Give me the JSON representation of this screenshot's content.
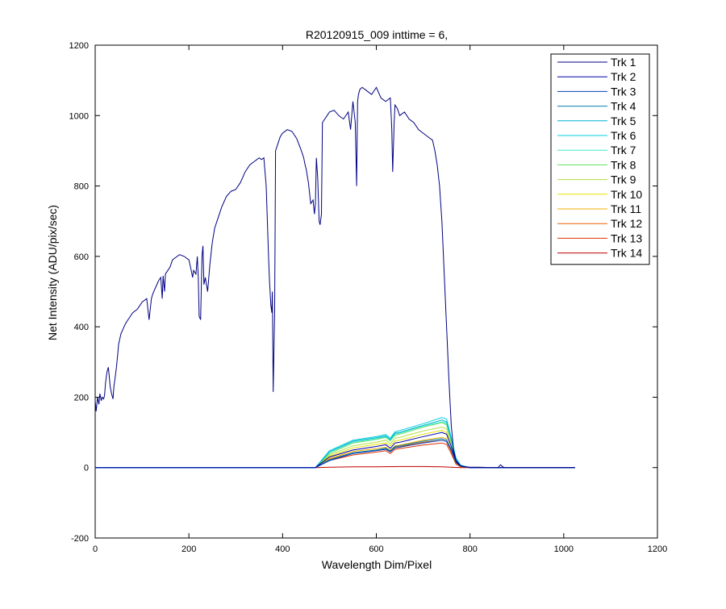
{
  "chart_data": {
    "type": "line",
    "title": "R20120915_009 inttime = 6,",
    "xlabel": "Wavelength Dim/Pixel",
    "ylabel": "Net Intensity (ADU/pix/sec)",
    "xlim": [
      0,
      1200
    ],
    "ylim": [
      -200,
      1200
    ],
    "xticks": [
      0,
      200,
      400,
      600,
      800,
      1000,
      1200
    ],
    "yticks": [
      -200,
      0,
      200,
      400,
      600,
      800,
      1000,
      1200
    ],
    "grid": false,
    "legend_position": "top-right",
    "series": [
      {
        "name": "Trk 1",
        "color": "#000080",
        "x": [
          0,
          2,
          5,
          8,
          10,
          13,
          15,
          18,
          20,
          22,
          25,
          28,
          30,
          32,
          35,
          38,
          40,
          43,
          45,
          48,
          50,
          55,
          60,
          65,
          70,
          75,
          80,
          90,
          100,
          110,
          115,
          120,
          122,
          125,
          130,
          135,
          140,
          143,
          145,
          148,
          150,
          155,
          160,
          165,
          170,
          175,
          180,
          190,
          200,
          205,
          208,
          210,
          215,
          218,
          220,
          222,
          225,
          228,
          230,
          232,
          235,
          240,
          245,
          250,
          255,
          260,
          270,
          280,
          290,
          300,
          310,
          320,
          330,
          340,
          350,
          355,
          360,
          365,
          370,
          372,
          375,
          377,
          378,
          380,
          383,
          385,
          390,
          395,
          400,
          410,
          420,
          430,
          440,
          445,
          448,
          450,
          455,
          460,
          465,
          468,
          470,
          472,
          475,
          478,
          480,
          483,
          485,
          490,
          495,
          500,
          510,
          520,
          530,
          540,
          545,
          550,
          555,
          558,
          560,
          562,
          565,
          570,
          580,
          590,
          600,
          610,
          620,
          630,
          633,
          635,
          638,
          640,
          645,
          650,
          660,
          670,
          680,
          690,
          700,
          710,
          720,
          725,
          730,
          735,
          740,
          745,
          750,
          755,
          760,
          765,
          770,
          775,
          780,
          785,
          790,
          800,
          820,
          850,
          860,
          865,
          870,
          875,
          880,
          900,
          950,
          1000,
          1024
        ],
        "values": [
          190,
          160,
          200,
          180,
          210,
          190,
          200,
          195,
          205,
          240,
          270,
          285,
          260,
          230,
          210,
          195,
          230,
          260,
          280,
          320,
          350,
          380,
          395,
          410,
          420,
          430,
          440,
          450,
          470,
          480,
          420,
          480,
          490,
          500,
          515,
          530,
          540,
          480,
          545,
          500,
          550,
          560,
          570,
          590,
          595,
          600,
          605,
          600,
          590,
          560,
          540,
          560,
          550,
          600,
          540,
          430,
          420,
          600,
          630,
          520,
          540,
          500,
          580,
          640,
          680,
          700,
          740,
          770,
          785,
          790,
          810,
          840,
          860,
          870,
          880,
          875,
          880,
          800,
          600,
          530,
          460,
          440,
          500,
          215,
          450,
          900,
          920,
          940,
          950,
          960,
          955,
          935,
          900,
          880,
          860,
          850,
          810,
          750,
          760,
          720,
          750,
          880,
          820,
          700,
          690,
          720,
          980,
          990,
          1000,
          1010,
          1015,
          1000,
          990,
          1010,
          960,
          1040,
          980,
          800,
          1040,
          1060,
          1075,
          1080,
          1070,
          1060,
          1080,
          1050,
          1040,
          1050,
          960,
          840,
          980,
          1030,
          1020,
          1000,
          1010,
          990,
          980,
          960,
          950,
          940,
          930,
          900,
          860,
          800,
          700,
          550,
          400,
          250,
          120,
          50,
          20,
          10,
          5,
          3,
          2,
          1,
          1,
          0,
          0,
          8,
          2,
          0,
          0,
          0,
          0,
          0,
          0
        ]
      },
      {
        "name": "Trk 2",
        "color": "#0000AA",
        "x": [
          0,
          470,
          500,
          550,
          600,
          620,
          630,
          640,
          650,
          700,
          740,
          750,
          760,
          770,
          780,
          800,
          1024
        ],
        "values": [
          0,
          0,
          30,
          50,
          60,
          65,
          55,
          70,
          72,
          88,
          100,
          95,
          60,
          20,
          5,
          0,
          0
        ]
      },
      {
        "name": "Trk 3",
        "color": "#0040C0",
        "x": [
          0,
          470,
          500,
          550,
          600,
          620,
          630,
          640,
          650,
          700,
          740,
          750,
          760,
          770,
          780,
          800,
          1024
        ],
        "values": [
          0,
          0,
          20,
          40,
          48,
          52,
          45,
          56,
          58,
          70,
          78,
          74,
          50,
          15,
          4,
          0,
          0
        ]
      },
      {
        "name": "Trk 4",
        "color": "#0080B0",
        "x": [
          0,
          470,
          500,
          550,
          600,
          620,
          630,
          640,
          650,
          700,
          740,
          750,
          760,
          770,
          780,
          800,
          1024
        ],
        "values": [
          0,
          0,
          22,
          42,
          50,
          55,
          48,
          60,
          62,
          75,
          82,
          78,
          52,
          15,
          4,
          0,
          0
        ]
      },
      {
        "name": "Trk 5",
        "color": "#00B0D0",
        "x": [
          0,
          470,
          500,
          550,
          600,
          620,
          630,
          640,
          650,
          700,
          740,
          750,
          760,
          770,
          780,
          800,
          1024
        ],
        "values": [
          0,
          0,
          45,
          75,
          85,
          90,
          80,
          98,
          100,
          120,
          135,
          130,
          80,
          25,
          6,
          0,
          0
        ]
      },
      {
        "name": "Trk 6",
        "color": "#00D0E0",
        "x": [
          0,
          470,
          500,
          550,
          600,
          620,
          630,
          640,
          650,
          700,
          740,
          750,
          760,
          770,
          780,
          800,
          1024
        ],
        "values": [
          0,
          0,
          48,
          78,
          88,
          94,
          84,
          102,
          105,
          125,
          142,
          138,
          85,
          28,
          7,
          0,
          0
        ]
      },
      {
        "name": "Trk 7",
        "color": "#40E8D0",
        "x": [
          0,
          470,
          500,
          550,
          600,
          620,
          630,
          640,
          650,
          700,
          740,
          750,
          760,
          770,
          780,
          800,
          1024
        ],
        "values": [
          0,
          0,
          44,
          72,
          82,
          88,
          78,
          95,
          98,
          118,
          130,
          126,
          78,
          24,
          6,
          0,
          0
        ]
      },
      {
        "name": "Trk 8",
        "color": "#60E060",
        "x": [
          0,
          470,
          500,
          550,
          600,
          620,
          630,
          640,
          650,
          700,
          740,
          750,
          760,
          770,
          780,
          800,
          1024
        ],
        "values": [
          0,
          0,
          40,
          70,
          80,
          86,
          76,
          92,
          95,
          115,
          128,
          122,
          75,
          22,
          5,
          0,
          0
        ]
      },
      {
        "name": "Trk 9",
        "color": "#B0E040",
        "x": [
          0,
          470,
          500,
          550,
          600,
          620,
          630,
          640,
          650,
          700,
          740,
          750,
          760,
          770,
          780,
          800,
          1024
        ],
        "values": [
          0,
          0,
          36,
          62,
          72,
          78,
          68,
          84,
          86,
          104,
          115,
          110,
          68,
          20,
          5,
          0,
          0
        ]
      },
      {
        "name": "Trk 10",
        "color": "#E8E000",
        "x": [
          0,
          470,
          500,
          550,
          600,
          620,
          630,
          640,
          650,
          700,
          740,
          750,
          760,
          770,
          780,
          800,
          1024
        ],
        "values": [
          0,
          0,
          32,
          56,
          66,
          70,
          62,
          76,
          78,
          95,
          106,
          100,
          62,
          18,
          4,
          0,
          0
        ]
      },
      {
        "name": "Trk 11",
        "color": "#F0B000",
        "x": [
          0,
          470,
          500,
          550,
          600,
          620,
          630,
          640,
          650,
          700,
          740,
          750,
          760,
          770,
          780,
          800,
          1024
        ],
        "values": [
          0,
          0,
          26,
          46,
          54,
          58,
          50,
          62,
          64,
          78,
          86,
          82,
          50,
          14,
          3,
          0,
          0
        ]
      },
      {
        "name": "Trk 12",
        "color": "#F06000",
        "x": [
          0,
          470,
          500,
          550,
          600,
          620,
          630,
          640,
          650,
          700,
          740,
          750,
          760,
          770,
          780,
          800,
          1024
        ],
        "values": [
          0,
          0,
          24,
          42,
          50,
          54,
          46,
          58,
          60,
          72,
          78,
          74,
          46,
          12,
          3,
          0,
          0
        ]
      },
      {
        "name": "Trk 13",
        "color": "#E03000",
        "x": [
          0,
          470,
          500,
          550,
          600,
          620,
          630,
          640,
          650,
          700,
          740,
          750,
          760,
          770,
          780,
          800,
          1024
        ],
        "values": [
          0,
          0,
          20,
          36,
          44,
          48,
          40,
          52,
          54,
          64,
          70,
          66,
          40,
          10,
          2,
          0,
          0
        ]
      },
      {
        "name": "Trk 14",
        "color": "#C00000",
        "x": [
          0,
          470,
          500,
          550,
          600,
          650,
          700,
          740,
          760,
          780,
          1024
        ],
        "values": [
          0,
          0,
          1,
          2,
          2,
          3,
          3,
          2,
          1,
          0,
          0
        ]
      }
    ]
  }
}
